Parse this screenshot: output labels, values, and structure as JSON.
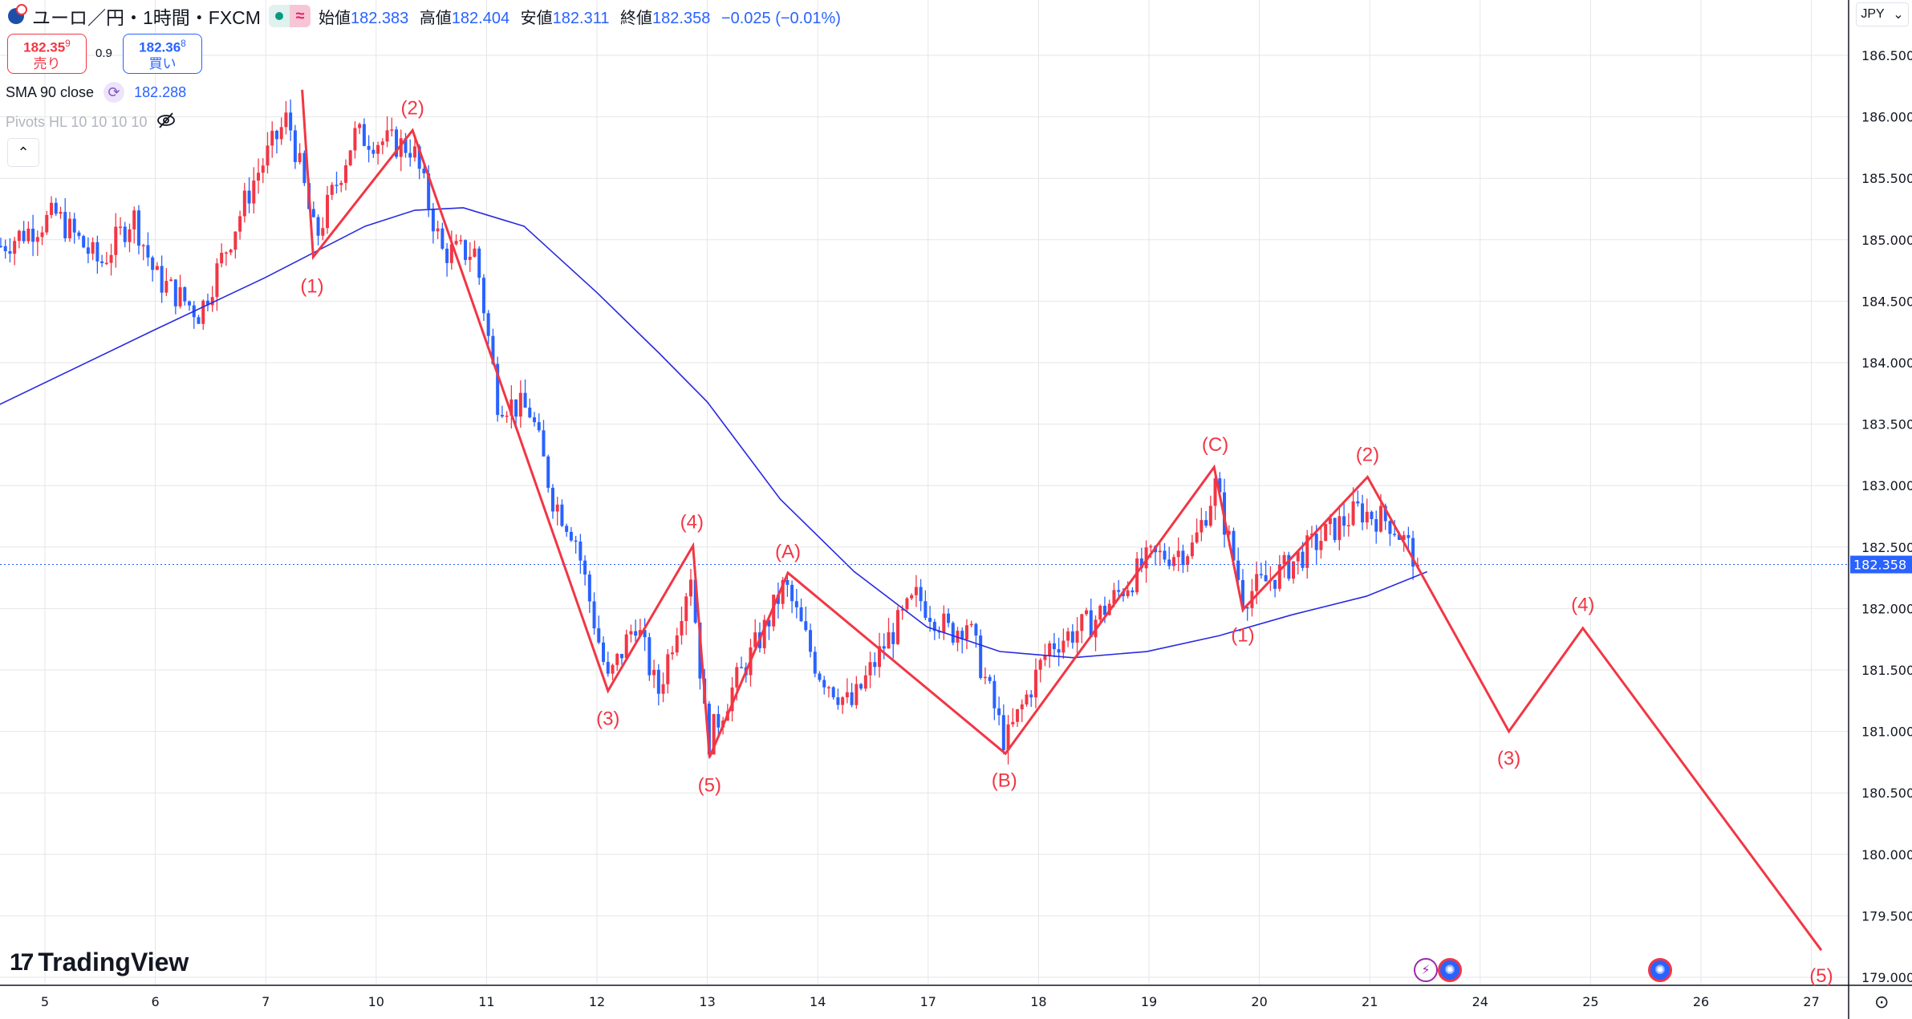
{
  "header": {
    "title": "ユーロ／円・1時間・FXCM",
    "ohlc": [
      {
        "k": "始値",
        "v": "182.383"
      },
      {
        "k": "高値",
        "v": "182.404"
      },
      {
        "k": "安値",
        "v": "182.311"
      },
      {
        "k": "終値",
        "v": "182.358"
      }
    ],
    "change": "−0.025 (−0.01%)",
    "badge_icon": "≈"
  },
  "trade": {
    "sell_price": "182.35",
    "sell_sup": "9",
    "sell_label": "売り",
    "spread": "0.9",
    "buy_price": "182.36",
    "buy_sup": "8",
    "buy_label": "買い"
  },
  "indicators": {
    "sma_label": "SMA 90 close",
    "sma_value": "182.288",
    "pivots_label": "Pivots HL 10 10 10 10"
  },
  "currency": "JPY",
  "logo": "TradingView",
  "colors": {
    "up": "#f23645",
    "down": "#2962ff",
    "sma": "#2929e0",
    "wave": "#f23645",
    "accent": "#2962ff"
  },
  "chart_data": {
    "type": "candlestick",
    "timeframe": "1h",
    "x_ticks": [
      "5",
      "6",
      "7",
      "10",
      "11",
      "12",
      "13",
      "14",
      "17",
      "18",
      "19",
      "20",
      "21",
      "24",
      "25",
      "26",
      "27"
    ],
    "y_ticks": [
      "186.500",
      "186.000",
      "185.500",
      "185.000",
      "184.500",
      "184.000",
      "183.500",
      "183.000",
      "182.500",
      "182.000",
      "181.500",
      "181.000",
      "180.500",
      "180.000",
      "179.500",
      "179.000"
    ],
    "ylim": [
      179.0,
      186.5
    ],
    "last_price": "182.358",
    "last_price_value": 182.358,
    "price_path": [
      [
        -0.4,
        184.95
      ],
      [
        0.1,
        185.2
      ],
      [
        0.5,
        184.8
      ],
      [
        0.8,
        185.2
      ],
      [
        1.0,
        184.7
      ],
      [
        1.4,
        184.4
      ],
      [
        1.9,
        185.5
      ],
      [
        2.2,
        186.0
      ],
      [
        2.33,
        185.5
      ],
      [
        2.45,
        185.0
      ],
      [
        2.8,
        185.85
      ],
      [
        3.33,
        185.75
      ],
      [
        3.6,
        184.9
      ],
      [
        3.9,
        184.9
      ],
      [
        4.1,
        183.7
      ],
      [
        4.4,
        183.6
      ],
      [
        4.6,
        182.9
      ],
      [
        4.8,
        182.6
      ],
      [
        5.1,
        181.4
      ],
      [
        5.35,
        181.9
      ],
      [
        5.55,
        181.3
      ],
      [
        5.85,
        182.3
      ],
      [
        6.0,
        180.9
      ],
      [
        6.2,
        181.3
      ],
      [
        6.5,
        181.8
      ],
      [
        6.7,
        182.2
      ],
      [
        7.0,
        181.5
      ],
      [
        7.3,
        181.2
      ],
      [
        7.6,
        181.7
      ],
      [
        7.9,
        182.1
      ],
      [
        8.2,
        181.8
      ],
      [
        8.35,
        181.9
      ],
      [
        8.7,
        180.9
      ],
      [
        9.1,
        181.7
      ],
      [
        9.5,
        181.9
      ],
      [
        10.0,
        182.4
      ],
      [
        10.4,
        182.5
      ],
      [
        10.6,
        183.0
      ],
      [
        10.85,
        182.1
      ],
      [
        11.2,
        182.3
      ],
      [
        11.6,
        182.6
      ],
      [
        11.9,
        182.8
      ],
      [
        12.2,
        182.7
      ],
      [
        12.45,
        182.36
      ]
    ],
    "sma90": [
      [
        -0.41,
        183.66
      ],
      [
        1.0,
        184.27
      ],
      [
        1.99,
        184.69
      ],
      [
        2.9,
        185.11
      ],
      [
        3.35,
        185.24
      ],
      [
        3.79,
        185.26
      ],
      [
        4.34,
        185.11
      ],
      [
        5.0,
        184.57
      ],
      [
        5.56,
        184.08
      ],
      [
        6.0,
        183.68
      ],
      [
        6.66,
        182.89
      ],
      [
        7.33,
        182.3
      ],
      [
        7.99,
        181.85
      ],
      [
        8.65,
        181.65
      ],
      [
        9.31,
        181.6
      ],
      [
        9.98,
        181.65
      ],
      [
        10.64,
        181.78
      ],
      [
        11.3,
        181.95
      ],
      [
        11.97,
        182.1
      ],
      [
        12.52,
        182.3
      ]
    ],
    "elliott_wave": [
      [
        2.33,
        186.22
      ],
      [
        2.43,
        184.86
      ],
      [
        3.33,
        185.89
      ],
      [
        5.1,
        181.33
      ],
      [
        5.87,
        182.51
      ],
      [
        6.02,
        180.79
      ],
      [
        6.73,
        182.29
      ],
      [
        8.7,
        180.82
      ],
      [
        10.59,
        183.15
      ],
      [
        10.85,
        181.99
      ],
      [
        11.98,
        183.07
      ],
      [
        13.26,
        181.0
      ],
      [
        13.93,
        181.84
      ],
      [
        16.09,
        179.22
      ]
    ],
    "wave_labels": [
      {
        "t": "(1)",
        "x": 2.42,
        "p": 184.63
      },
      {
        "t": "(2)",
        "x": 3.33,
        "p": 186.08
      },
      {
        "t": "(3)",
        "x": 5.1,
        "p": 181.11
      },
      {
        "t": "(4)",
        "x": 5.86,
        "p": 182.71
      },
      {
        "t": "(5)",
        "x": 6.02,
        "p": 180.57
      },
      {
        "t": "(A)",
        "x": 6.73,
        "p": 182.47
      },
      {
        "t": "(B)",
        "x": 8.69,
        "p": 180.61
      },
      {
        "t": "(C)",
        "x": 10.6,
        "p": 183.34
      },
      {
        "t": "(1)",
        "x": 10.85,
        "p": 181.79
      },
      {
        "t": "(2)",
        "x": 11.98,
        "p": 183.26
      },
      {
        "t": "(3)",
        "x": 13.26,
        "p": 180.79
      },
      {
        "t": "(4)",
        "x": 13.93,
        "p": 182.04
      },
      {
        "t": "(5)",
        "x": 16.09,
        "p": 179.02
      }
    ]
  }
}
